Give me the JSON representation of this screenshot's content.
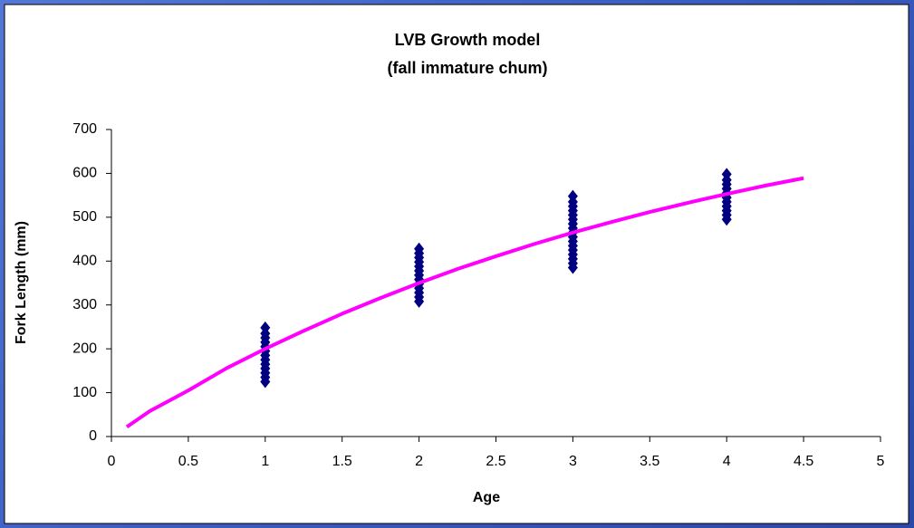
{
  "chart_data": {
    "type": "scatter",
    "title": "LVB Growth model",
    "subtitle": "(fall immature chum)",
    "x_label": "Age",
    "y_label": "Fork Length (mm)",
    "xlim": [
      0,
      5
    ],
    "ylim": [
      0,
      700
    ],
    "xticks": [
      0,
      0.5,
      1,
      1.5,
      2,
      2.5,
      3,
      3.5,
      4,
      4.5,
      5
    ],
    "yticks": [
      0,
      100,
      200,
      300,
      400,
      500,
      600,
      700
    ],
    "grid": false,
    "series": [
      {
        "type": "scatter",
        "color": "#000080",
        "x": [
          1,
          1,
          1,
          1,
          1,
          1,
          1,
          1,
          1,
          1,
          1,
          1,
          1,
          2,
          2,
          2,
          2,
          2,
          2,
          2,
          2,
          2,
          2,
          2,
          2,
          2,
          3,
          3,
          3,
          3,
          3,
          3,
          3,
          3,
          3,
          3,
          3,
          3,
          3,
          3,
          3,
          3,
          3,
          4,
          4,
          4,
          4,
          4,
          4,
          4,
          4,
          4,
          4,
          4
        ],
        "values": [
          125,
          135,
          145,
          155,
          165,
          175,
          185,
          195,
          205,
          215,
          225,
          235,
          248,
          308,
          318,
          328,
          338,
          348,
          358,
          368,
          378,
          388,
          398,
          408,
          418,
          428,
          385,
          395,
          405,
          415,
          425,
          435,
          445,
          455,
          465,
          475,
          485,
          495,
          505,
          515,
          525,
          535,
          548,
          495,
          505,
          515,
          525,
          535,
          545,
          555,
          565,
          575,
          585,
          598
        ]
      },
      {
        "type": "line",
        "color": "#ff00ff",
        "x": [
          0.1,
          0.25,
          0.5,
          0.75,
          1,
          1.25,
          1.5,
          1.75,
          2,
          2.25,
          2.5,
          2.75,
          3,
          3.25,
          3.5,
          3.75,
          4,
          4.25,
          4.5
        ],
        "values": [
          22,
          58,
          105,
          156,
          200,
          241,
          280,
          316,
          350,
          382,
          411,
          439,
          465,
          489,
          512,
          533,
          553,
          572,
          589
        ]
      }
    ]
  }
}
